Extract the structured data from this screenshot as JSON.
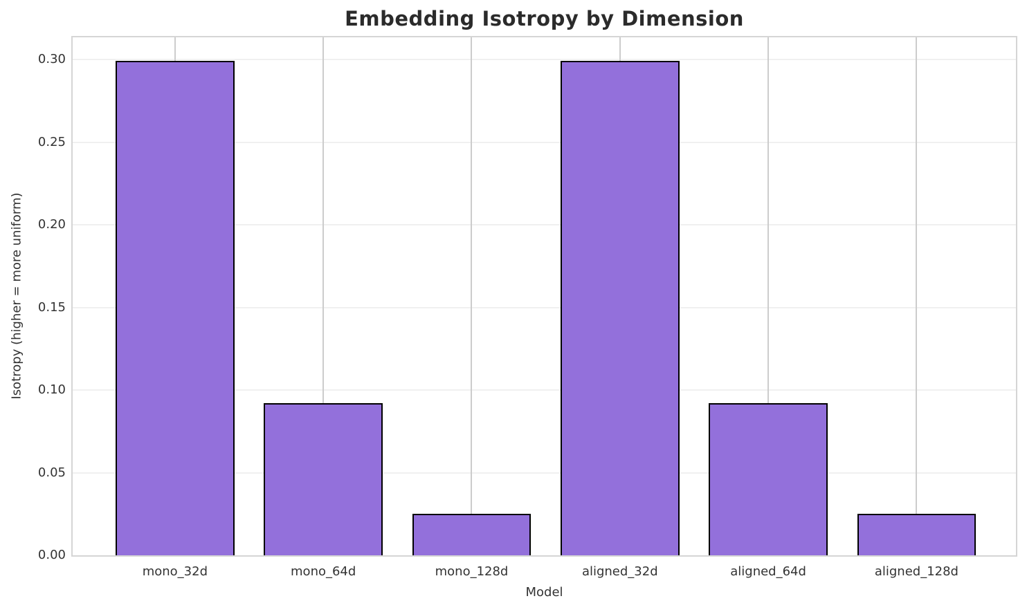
{
  "chart_data": {
    "type": "bar",
    "title": "Embedding Isotropy by Dimension",
    "xlabel": "Model",
    "ylabel": "Isotropy (higher = more uniform)",
    "categories": [
      "mono_32d",
      "mono_64d",
      "mono_128d",
      "aligned_32d",
      "aligned_64d",
      "aligned_128d"
    ],
    "values": [
      0.299,
      0.092,
      0.025,
      0.299,
      0.092,
      0.025
    ],
    "ytick_labels": [
      "0.00",
      "0.05",
      "0.10",
      "0.15",
      "0.20",
      "0.25",
      "0.30"
    ],
    "yticks": [
      0.0,
      0.05,
      0.1,
      0.15,
      0.2,
      0.25,
      0.3
    ],
    "ylim": [
      0,
      0.3134
    ],
    "xlim": [
      -0.69,
      5.67
    ],
    "bar_width": 0.8,
    "grid": true,
    "legend": false,
    "colors": {
      "bar_fill": "#9370DB",
      "bar_edge": "#000000",
      "hgrid": "#f0f0f0",
      "vgrid": "#cccccc",
      "spine": "#d5d5d5",
      "text": "#333333",
      "title": "#2b2b2b",
      "background": "#ffffff"
    }
  }
}
